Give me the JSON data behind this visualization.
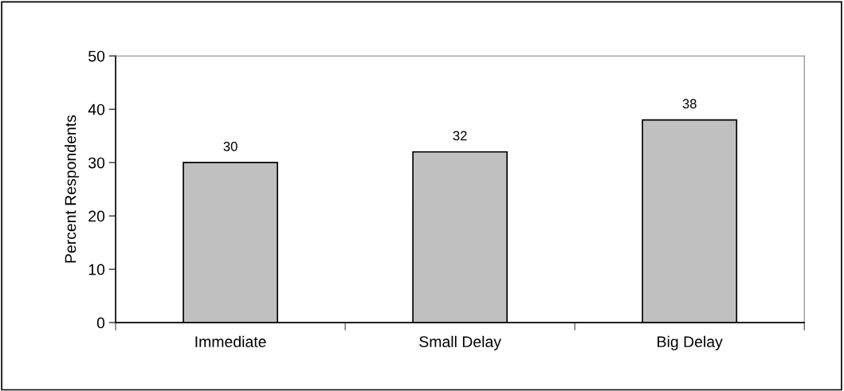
{
  "chart_data": {
    "type": "bar",
    "ylabel": "Percent Respondents",
    "categories": [
      "Immediate",
      "Small Delay",
      "Big Delay"
    ],
    "values": [
      30,
      32,
      38
    ],
    "color": "#c0c0c0",
    "ylim": [
      0,
      50
    ],
    "yticks": [
      0,
      10,
      20,
      30,
      40,
      50
    ],
    "grid": false,
    "data_labels": true
  }
}
